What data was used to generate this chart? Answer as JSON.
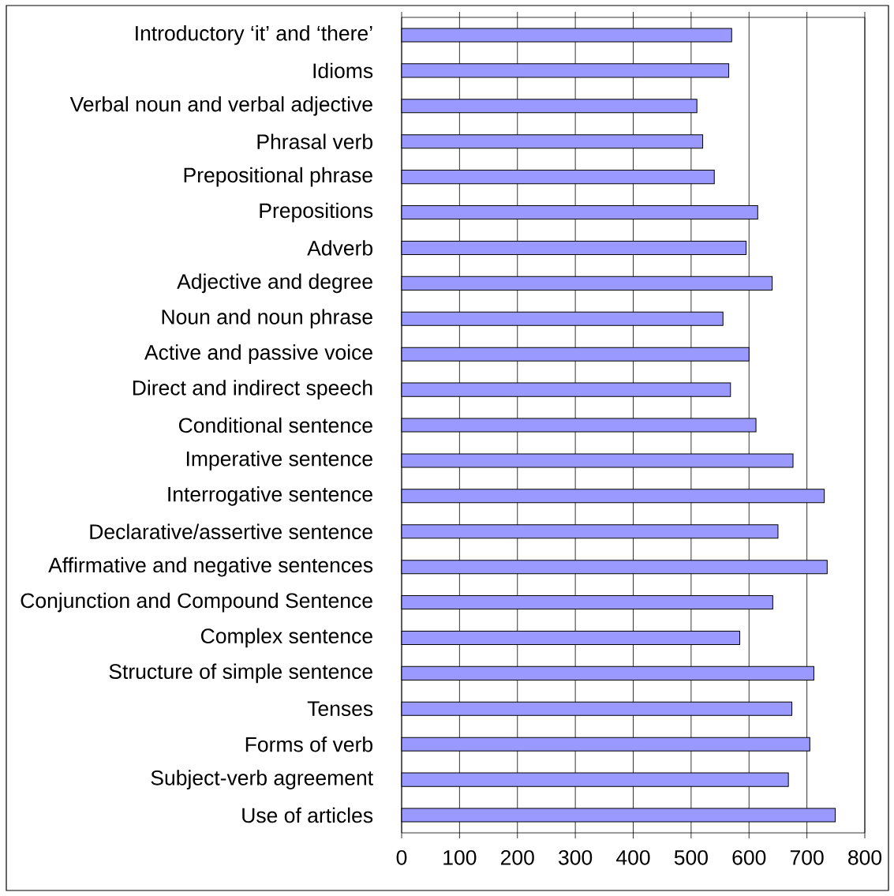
{
  "chart_data": {
    "type": "bar",
    "orientation": "horizontal",
    "categories": [
      "Introductory ‘it’ and ‘there’",
      "Idioms",
      "Verbal noun and verbal adjective",
      "Phrasal verb",
      "Prepositional phrase",
      "Prepositions",
      "Adverb",
      "Adjective and degree",
      "Noun and noun phrase",
      "Active and passive voice",
      "Direct and indirect speech",
      "Conditional sentence",
      "Imperative sentence",
      "Interrogative sentence",
      "Declarative/assertive sentence",
      "Affirmative and negative sentences",
      "Conjunction and Compound Sentence",
      "Complex sentence",
      "Structure of simple sentence",
      "Tenses",
      "Forms of verb",
      "Subject-verb agreement",
      "Use of articles"
    ],
    "values": [
      570,
      565,
      510,
      520,
      540,
      615,
      595,
      640,
      555,
      600,
      568,
      612,
      676,
      730,
      650,
      735,
      641,
      584,
      712,
      674,
      705,
      668,
      749
    ],
    "color": "#9999ff",
    "xlim": [
      0,
      800
    ],
    "xticks": [
      0,
      100,
      200,
      300,
      400,
      500,
      600,
      700,
      800
    ],
    "grid": "x"
  }
}
